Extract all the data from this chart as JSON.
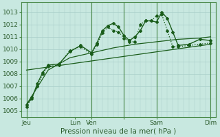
{
  "bg_color": "#c8e8e0",
  "grid_color": "#a8cec8",
  "line_color": "#1a5c1a",
  "dark_line_color": "#1a5c1a",
  "ylabel_ticks": [
    1005,
    1006,
    1007,
    1008,
    1009,
    1010,
    1011,
    1012,
    1013
  ],
  "ylim": [
    1004.5,
    1013.8
  ],
  "xlim": [
    0,
    36
  ],
  "xlabel": "Pression niveau de la mer( hPa )",
  "xlabel_fontsize": 7.5,
  "tick_fontsize": 6.5,
  "xtick_positions": [
    1,
    10,
    13,
    19,
    25,
    35
  ],
  "xtick_labels": [
    "Jeu",
    "Lun",
    "Ven",
    "",
    "Sam",
    "Dim"
  ],
  "vline_positions": [
    1,
    13,
    19,
    25,
    35
  ],
  "line1_x": [
    1,
    2,
    3,
    4,
    5,
    7,
    9,
    11,
    13,
    14,
    15,
    16,
    17,
    18,
    19,
    20,
    21,
    22,
    23,
    24,
    25,
    26,
    27,
    28,
    29,
    31,
    33,
    35
  ],
  "line1_y": [
    1005.5,
    1006.0,
    1007.2,
    1008.1,
    1008.7,
    1008.8,
    1009.8,
    1010.3,
    1009.7,
    1010.5,
    1011.5,
    1011.9,
    1012.1,
    1011.8,
    1011.1,
    1010.7,
    1011.0,
    1011.5,
    1012.3,
    1012.3,
    1012.2,
    1013.0,
    1012.5,
    1011.4,
    1010.3,
    1010.4,
    1010.8,
    1010.7
  ],
  "line1_lw": 1.0,
  "line2_x": [
    1,
    2,
    3,
    4,
    5,
    7,
    9,
    11,
    13,
    14,
    15,
    16,
    17,
    18,
    19,
    20,
    21,
    22,
    23,
    24,
    25,
    26,
    27,
    28,
    29,
    31,
    33,
    35
  ],
  "line2_y": [
    1005.3,
    1006.1,
    1007.0,
    1008.0,
    1008.6,
    1008.7,
    1009.9,
    1010.2,
    1009.6,
    1010.4,
    1011.3,
    1011.8,
    1011.5,
    1011.4,
    1010.9,
    1010.6,
    1010.6,
    1012.0,
    1012.3,
    1012.3,
    1012.7,
    1012.8,
    1011.5,
    1010.2,
    1010.2,
    1010.3,
    1010.4,
    1010.5
  ],
  "line2_lw": 1.0,
  "line3_x": [
    1,
    35
  ],
  "line3_y": [
    1008.3,
    1010.4
  ],
  "line4_x": [
    1,
    5,
    9,
    13,
    17,
    21,
    25,
    29,
    33,
    35
  ],
  "line4_y": [
    1005.5,
    1008.3,
    1009.3,
    1009.7,
    1010.1,
    1010.4,
    1010.6,
    1010.8,
    1010.9,
    1011.0
  ],
  "marker_size": 2.0
}
